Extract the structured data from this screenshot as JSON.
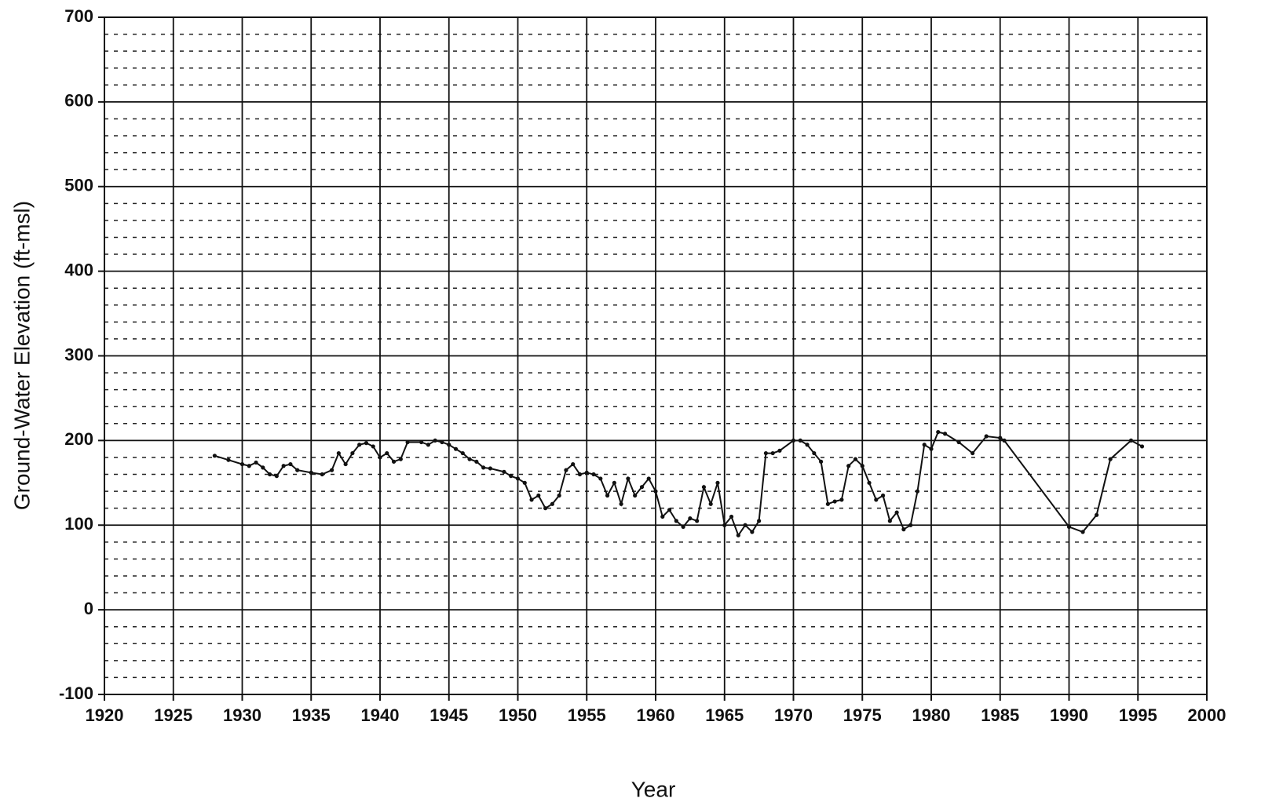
{
  "chart_data": {
    "type": "line",
    "x_label": "Year",
    "y_label": "Ground-Water Elevation (ft-msl)",
    "xlim": [
      1920,
      2000
    ],
    "ylim": [
      -100,
      700
    ],
    "xticks": [
      1920,
      1925,
      1930,
      1935,
      1940,
      1945,
      1950,
      1955,
      1960,
      1965,
      1970,
      1975,
      1980,
      1985,
      1990,
      1995,
      2000
    ],
    "yticks": [
      -100,
      0,
      100,
      200,
      300,
      400,
      500,
      600,
      700
    ],
    "y_minor_ticks": [
      -80,
      -60,
      -40,
      -20,
      20,
      40,
      60,
      80,
      120,
      140,
      160,
      180,
      220,
      240,
      260,
      280,
      320,
      340,
      360,
      380,
      420,
      440,
      460,
      480,
      520,
      540,
      560,
      580,
      620,
      640,
      660,
      680
    ],
    "grid": true,
    "series": [
      {
        "color": "#111111",
        "x": [
          1928,
          1929,
          1930,
          1930.5,
          1931,
          1931.5,
          1932,
          1932.5,
          1933,
          1933.5,
          1934,
          1935,
          1935.8,
          1936.5,
          1937,
          1937.5,
          1938,
          1938.5,
          1939,
          1939.5,
          1940,
          1940.5,
          1941,
          1941.5,
          1942,
          1943,
          1943.5,
          1944,
          1944.5,
          1945,
          1945.5,
          1946,
          1946.5,
          1947,
          1947.5,
          1948,
          1949,
          1949.5,
          1950,
          1950.5,
          1951,
          1951.5,
          1952,
          1952.5,
          1953,
          1953.5,
          1954,
          1954.5,
          1955,
          1955.5,
          1956,
          1956.5,
          1957,
          1957.5,
          1958,
          1958.5,
          1959,
          1959.5,
          1960,
          1960.5,
          1961,
          1961.5,
          1962,
          1962.5,
          1963,
          1963.5,
          1964,
          1964.5,
          1965,
          1965.5,
          1966,
          1966.5,
          1967,
          1967.5,
          1968,
          1968.5,
          1969,
          1970,
          1970.5,
          1971,
          1971.5,
          1972,
          1972.5,
          1973,
          1973.5,
          1974,
          1974.5,
          1975,
          1975.5,
          1976,
          1976.5,
          1977,
          1977.5,
          1978,
          1978.5,
          1979,
          1979.5,
          1980,
          1980.5,
          1981,
          1982,
          1983,
          1984,
          1985,
          1985.3,
          1990,
          1991,
          1992,
          1993,
          1994.5,
          1995.3
        ],
        "values": [
          182,
          177,
          172,
          170,
          174,
          168,
          160,
          158,
          170,
          172,
          165,
          162,
          160,
          165,
          185,
          172,
          185,
          195,
          197,
          193,
          180,
          185,
          175,
          178,
          198,
          198,
          195,
          200,
          198,
          195,
          190,
          185,
          178,
          175,
          168,
          167,
          163,
          158,
          155,
          150,
          130,
          135,
          120,
          125,
          135,
          165,
          172,
          160,
          162,
          160,
          155,
          135,
          150,
          125,
          155,
          135,
          145,
          155,
          140,
          110,
          118,
          105,
          98,
          108,
          105,
          145,
          125,
          150,
          100,
          110,
          88,
          100,
          92,
          105,
          185,
          185,
          188,
          200,
          200,
          195,
          185,
          175,
          125,
          128,
          130,
          170,
          178,
          170,
          150,
          130,
          135,
          105,
          115,
          95,
          100,
          140,
          195,
          190,
          210,
          208,
          198,
          185,
          205,
          203,
          200,
          98,
          92,
          112,
          178,
          200,
          193
        ]
      }
    ]
  }
}
